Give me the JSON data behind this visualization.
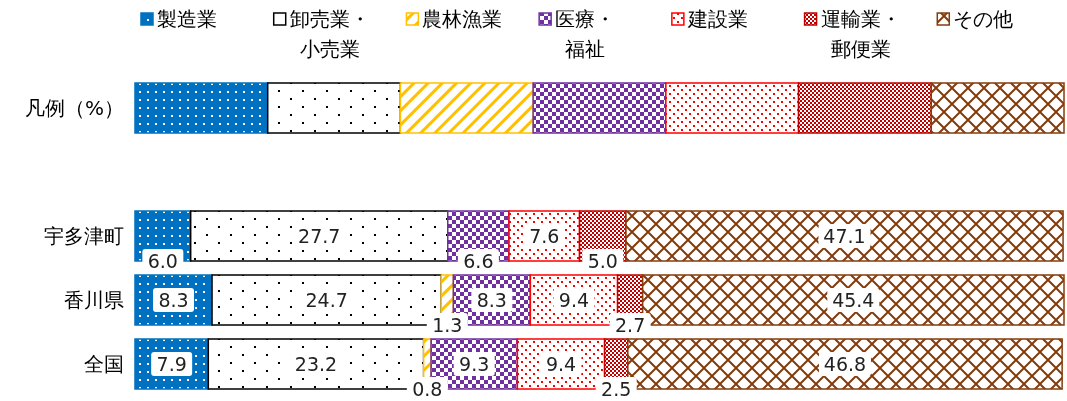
{
  "chart_data": {
    "type": "bar",
    "orientation": "horizontal",
    "stacked": true,
    "legend": "top",
    "categories": [
      "凡例（%）",
      null,
      "宇多津町",
      "香川県",
      "全国"
    ],
    "series": [
      {
        "name": "製造業",
        "color": "#0070c0",
        "values": [
          14.3,
          null,
          6.0,
          8.3,
          7.9
        ],
        "value_labels": [
          null,
          null,
          "6.0",
          "8.3",
          "7.9"
        ]
      },
      {
        "name": "卸売業・小売業",
        "color": "#000000",
        "values": [
          14.3,
          null,
          27.7,
          24.7,
          23.2
        ],
        "value_labels": [
          null,
          null,
          "27.7",
          "24.7",
          "23.2"
        ]
      },
      {
        "name": "農林漁業",
        "color": "#ffc000",
        "values": [
          14.3,
          null,
          null,
          1.3,
          0.8
        ],
        "value_labels": [
          null,
          null,
          null,
          "1.3",
          "0.8"
        ]
      },
      {
        "name": "医療・福祉",
        "color": "#7030a0",
        "values": [
          14.3,
          null,
          6.6,
          8.3,
          9.3
        ],
        "value_labels": [
          null,
          null,
          "6.6",
          "8.3",
          "9.3"
        ]
      },
      {
        "name": "建設業",
        "color": "#ff0000",
        "values": [
          14.3,
          null,
          7.6,
          9.4,
          9.4
        ],
        "value_labels": [
          null,
          null,
          "7.6",
          "9.4",
          "9.4"
        ]
      },
      {
        "name": "運輸業・郵便業",
        "color": "#c00000",
        "values": [
          14.3,
          null,
          5.0,
          2.7,
          2.5
        ],
        "value_labels": [
          null,
          null,
          "5.0",
          "2.7",
          "2.5"
        ]
      },
      {
        "name": "その他",
        "color": "#843c0c",
        "values": [
          14.3,
          null,
          47.1,
          45.4,
          46.8
        ],
        "value_labels": [
          null,
          null,
          "47.1",
          "45.4",
          "46.8"
        ]
      }
    ]
  }
}
